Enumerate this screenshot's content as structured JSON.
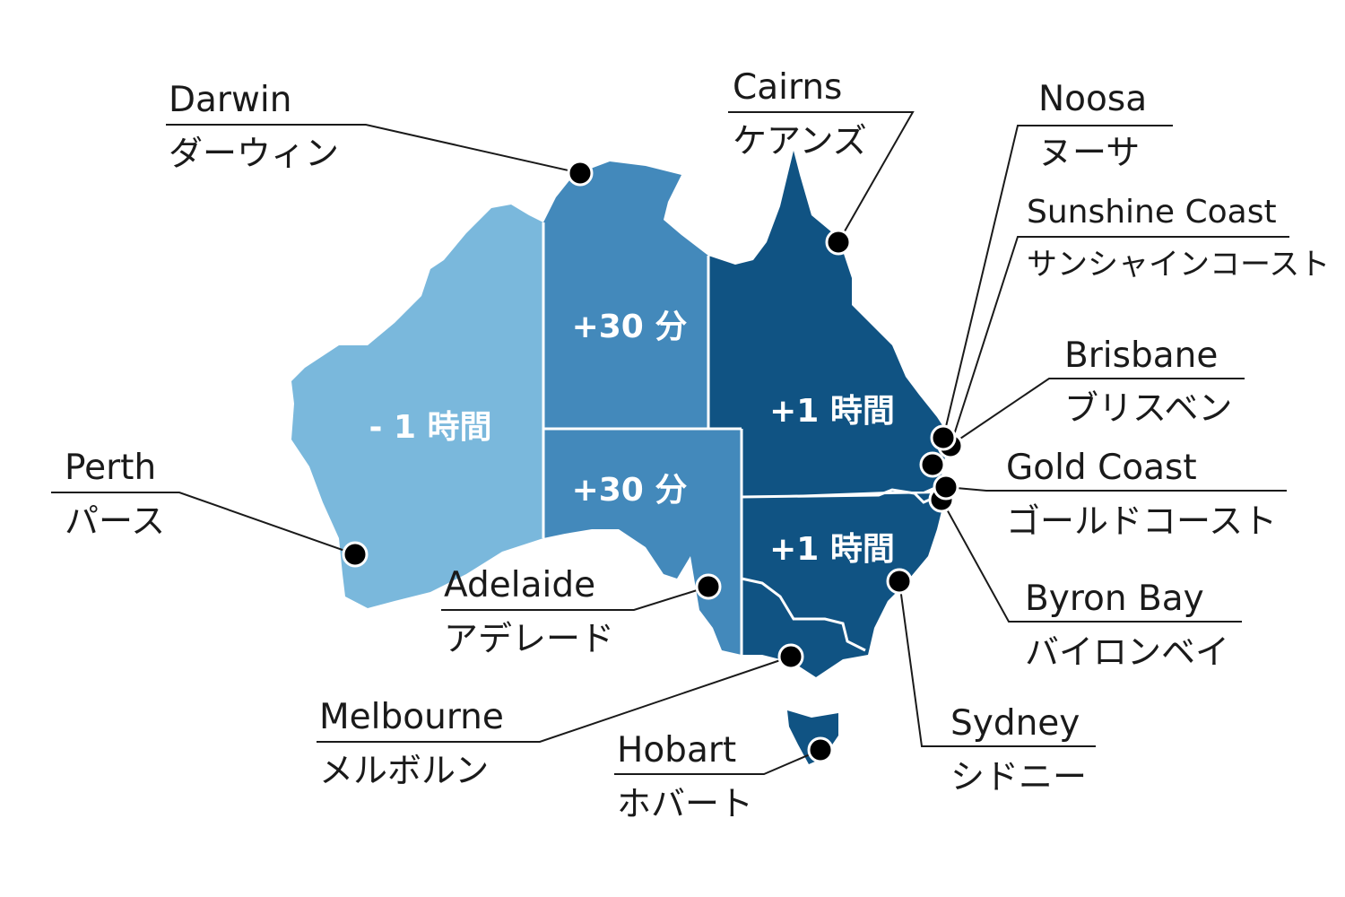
{
  "colors": {
    "zone_minus1h": "#7ab8dc",
    "zone_plus30m": "#4389bb",
    "zone_plus1h": "#105383",
    "dot": "#000000"
  },
  "zones": [
    {
      "id": "wa",
      "label": "- 1 時間"
    },
    {
      "id": "nt",
      "label": "+30 分"
    },
    {
      "id": "sa",
      "label": "+30 分"
    },
    {
      "id": "qld",
      "label": "+1 時間"
    },
    {
      "id": "nsw",
      "label": "+1 時間"
    }
  ],
  "cities": [
    {
      "en": "Darwin",
      "ja": "ダーウィン"
    },
    {
      "en": "Cairns",
      "ja": "ケアンズ"
    },
    {
      "en": "Noosa",
      "ja": "ヌーサ"
    },
    {
      "en": "Sunshine Coast",
      "ja": "サンシャインコースト"
    },
    {
      "en": "Brisbane",
      "ja": "ブリスベン"
    },
    {
      "en": "Gold Coast",
      "ja": "ゴールドコースト"
    },
    {
      "en": "Byron Bay",
      "ja": "バイロンベイ"
    },
    {
      "en": "Sydney",
      "ja": "シドニー"
    },
    {
      "en": "Hobart",
      "ja": "ホバート"
    },
    {
      "en": "Melbourne",
      "ja": "メルボルン"
    },
    {
      "en": "Adelaide",
      "ja": "アデレード"
    },
    {
      "en": "Perth",
      "ja": "パース"
    }
  ]
}
